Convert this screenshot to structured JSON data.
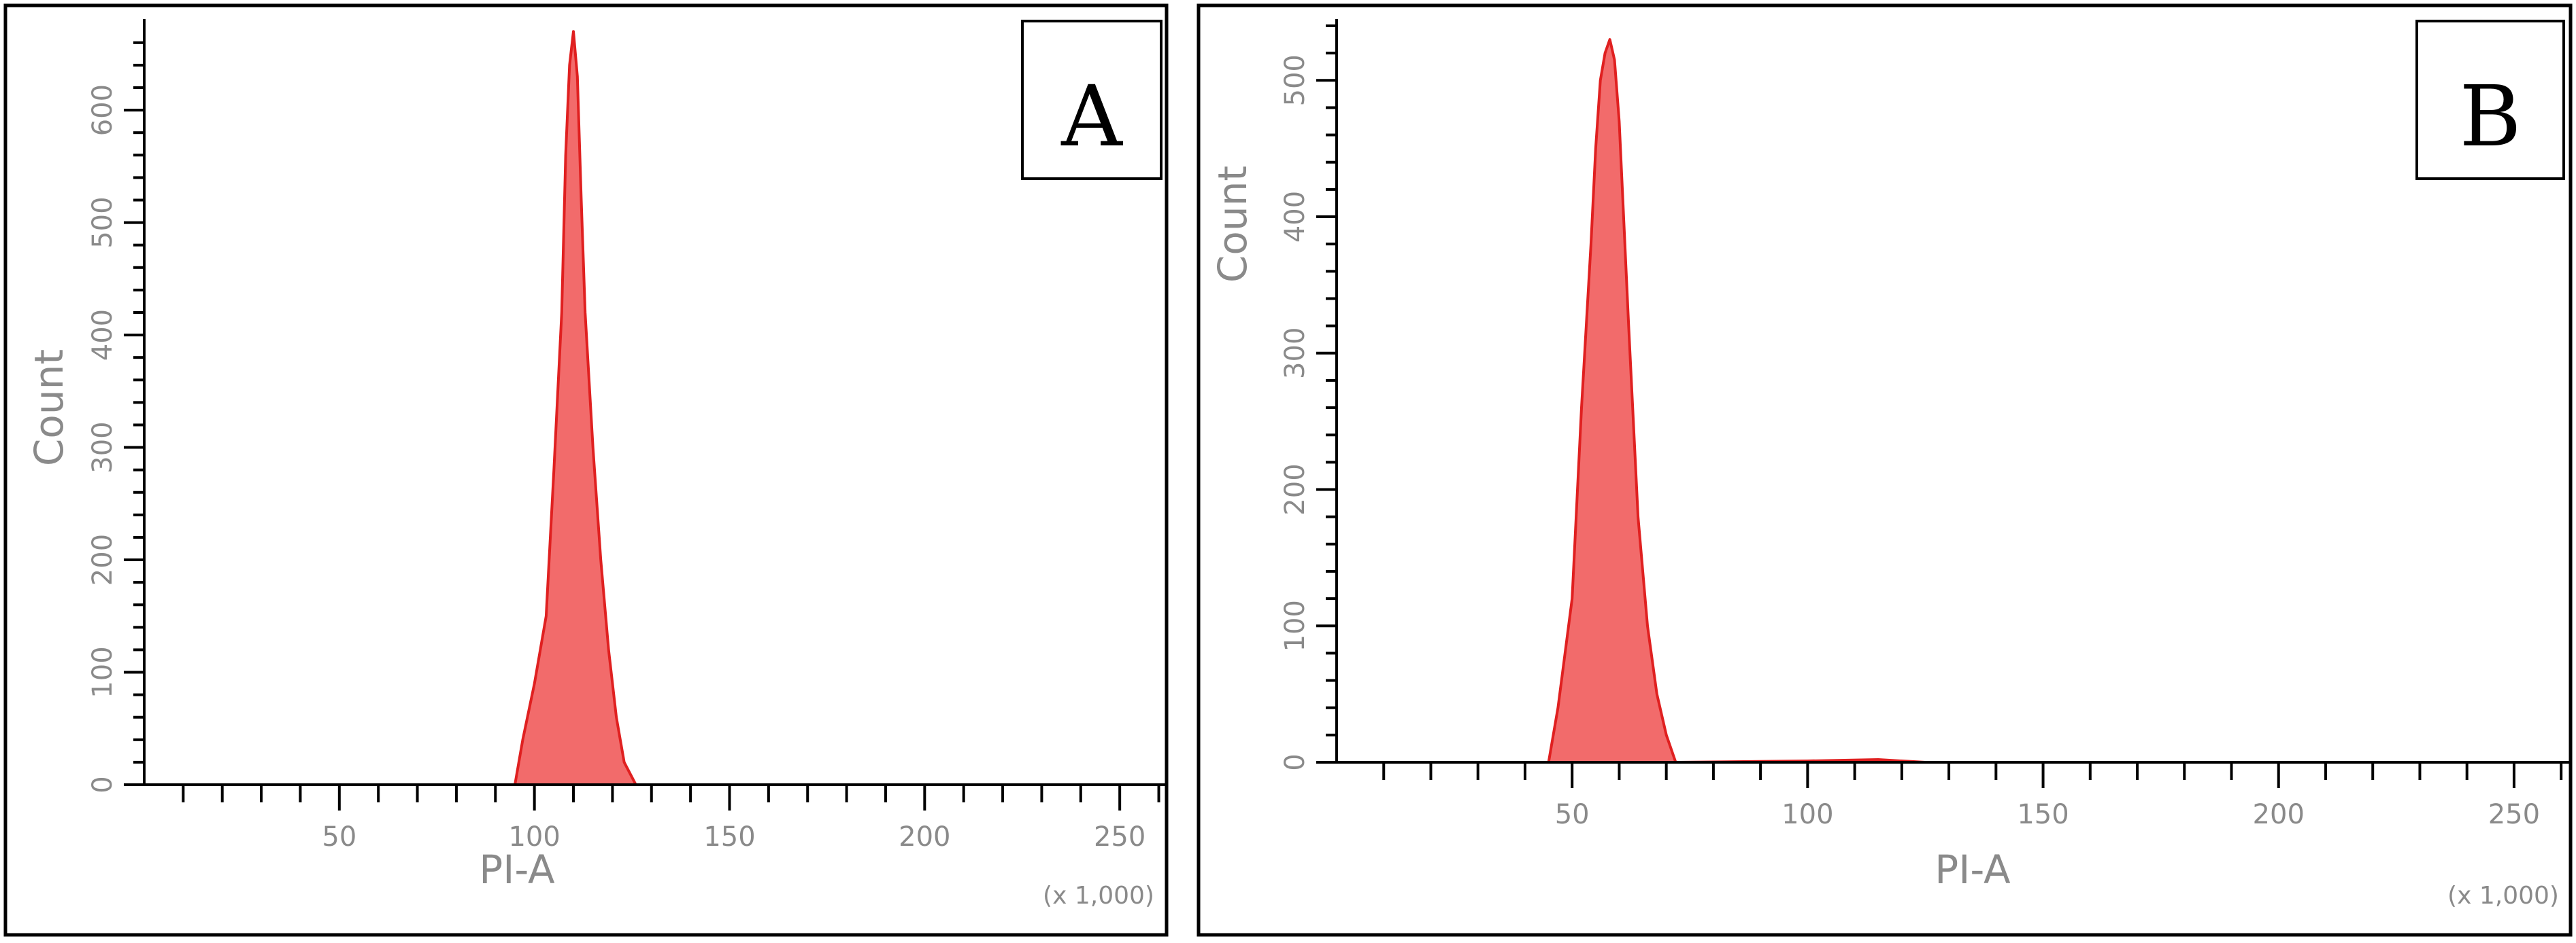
{
  "colors": {
    "fill": "#f26b6b",
    "stroke": "#e02020",
    "axis": "#000000",
    "text": "#8a8a8a"
  },
  "chart_data": [
    {
      "type": "area",
      "panel_label": "A",
      "xlabel": "PI-A",
      "ylabel": "Count",
      "x_scale_note": "(x 1,000)",
      "xlim": [
        0,
        262
      ],
      "ylim": [
        0,
        675
      ],
      "x_ticks": [
        50,
        100,
        150,
        200,
        250
      ],
      "y_ticks": [
        0,
        100,
        200,
        300,
        400,
        500,
        600
      ],
      "series": [
        {
          "x": [
            95,
            97,
            100,
            103,
            105,
            107,
            108,
            109,
            110,
            111,
            112,
            113,
            115,
            117,
            119,
            121,
            123,
            126
          ],
          "y": [
            0,
            40,
            90,
            150,
            280,
            420,
            560,
            640,
            670,
            630,
            520,
            420,
            300,
            200,
            120,
            60,
            20,
            0
          ]
        }
      ]
    },
    {
      "type": "area",
      "panel_label": "B",
      "xlabel": "PI-A",
      "ylabel": "Count",
      "x_scale_note": "(x 1,000)",
      "xlim": [
        0,
        262
      ],
      "ylim": [
        0,
        540
      ],
      "x_ticks": [
        50,
        100,
        150,
        200,
        250
      ],
      "y_ticks": [
        0,
        100,
        200,
        300,
        400,
        500
      ],
      "series": [
        {
          "x": [
            45,
            47,
            50,
            52,
            54,
            55,
            56,
            57,
            58,
            59,
            60,
            62,
            64,
            66,
            68,
            70,
            72,
            100,
            115,
            125
          ],
          "y": [
            0,
            40,
            120,
            260,
            380,
            450,
            500,
            520,
            530,
            515,
            470,
            320,
            180,
            100,
            50,
            20,
            0,
            1,
            2,
            0
          ]
        }
      ]
    }
  ]
}
